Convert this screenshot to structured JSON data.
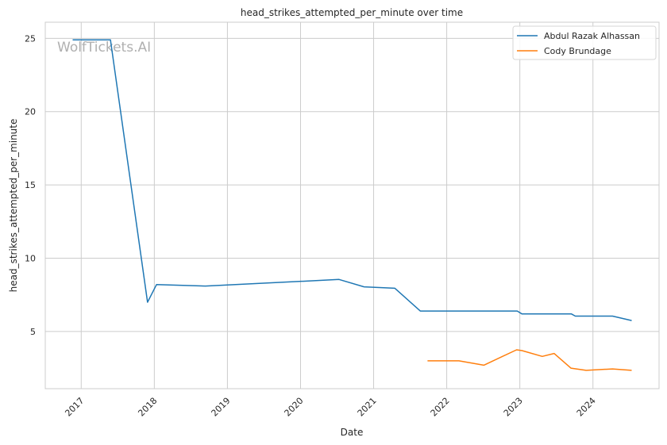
{
  "chart_data": {
    "type": "line",
    "title": "head_strikes_attempted_per_minute over time",
    "xlabel": "Date",
    "ylabel": "head_strikes_attempted_per_minute",
    "watermark": "WolfTickets.AI",
    "xlim": [
      "2016-07-05",
      "2024-11-27"
    ],
    "ylim": [
      1.1,
      26.1
    ],
    "x_ticks": [
      "2017",
      "2018",
      "2019",
      "2020",
      "2021",
      "2022",
      "2023",
      "2024"
    ],
    "y_ticks": [
      5,
      10,
      15,
      20,
      25
    ],
    "grid": true,
    "legend_placement": "top-right",
    "series": [
      {
        "name": "Abdul Razak Alhassan",
        "color": "#1f77b4",
        "x": [
          "2016-11-19",
          "2017-05-27",
          "2017-11-28",
          "2018-01-12",
          "2018-09-13",
          "2020-07-12",
          "2020-11-14",
          "2021-04-17",
          "2021-08-22",
          "2022-12-19",
          "2023-01-12",
          "2023-09-16",
          "2023-10-05",
          "2024-04-08",
          "2024-07-13"
        ],
        "y": [
          24.9,
          24.9,
          7.0,
          8.2,
          8.1,
          8.55,
          8.05,
          7.95,
          6.4,
          6.4,
          6.2,
          6.2,
          6.05,
          6.05,
          5.75
        ]
      },
      {
        "name": "Cody Brundage",
        "color": "#ff7f0e",
        "x": [
          "2021-09-27",
          "2022-03-03",
          "2022-07-05",
          "2022-12-16",
          "2023-01-12",
          "2023-04-23",
          "2023-06-21",
          "2023-09-13",
          "2023-11-28",
          "2024-04-08",
          "2024-07-13"
        ],
        "y": [
          3.0,
          3.0,
          2.7,
          3.75,
          3.7,
          3.3,
          3.5,
          2.5,
          2.35,
          2.45,
          2.35
        ]
      }
    ]
  }
}
